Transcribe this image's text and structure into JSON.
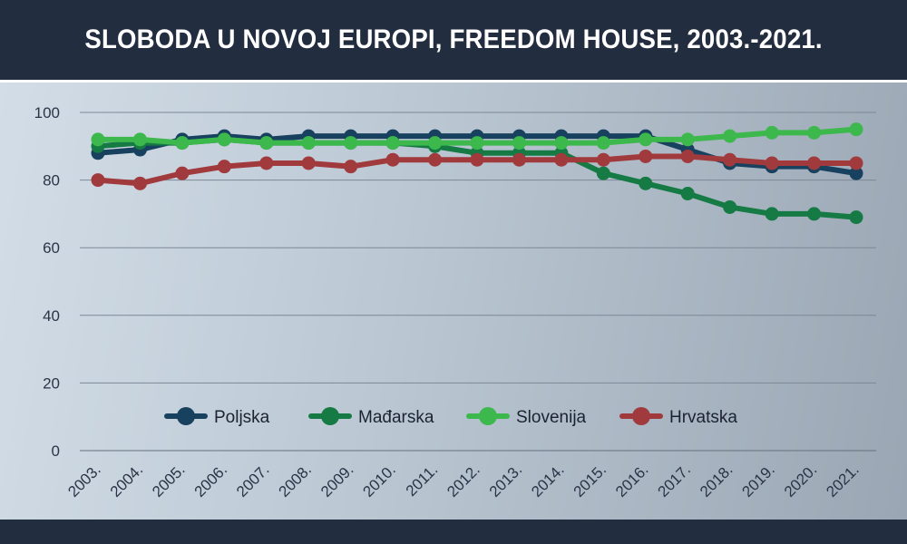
{
  "title": "SLOBODA U NOVOJ EUROPI, FREEDOM HOUSE, 2003.-2021.",
  "chart_data": {
    "type": "line",
    "title": "SLOBODA U NOVOJ EUROPI, FREEDOM HOUSE, 2003.-2021.",
    "xlabel": "",
    "ylabel": "",
    "ylim": [
      0,
      100
    ],
    "yticks": [
      0,
      20,
      40,
      60,
      80,
      100
    ],
    "grid": true,
    "legend_position": "bottom-center",
    "categories": [
      "2003.",
      "2004.",
      "2005.",
      "2006.",
      "2007.",
      "2008.",
      "2009.",
      "2010.",
      "2011.",
      "2012.",
      "2013.",
      "2014.",
      "2015.",
      "2016.",
      "2017.",
      "2018.",
      "2019.",
      "2020.",
      "2021."
    ],
    "series": [
      {
        "name": "Poljska",
        "color": "#17415f",
        "values": [
          88,
          89,
          92,
          93,
          92,
          93,
          93,
          93,
          93,
          93,
          93,
          93,
          93,
          93,
          89,
          85,
          84,
          84,
          82
        ]
      },
      {
        "name": "Mađarska",
        "color": "#157a43",
        "values": [
          90,
          91,
          91,
          92,
          91,
          91,
          91,
          91,
          90,
          88,
          88,
          88,
          82,
          79,
          76,
          72,
          70,
          70,
          69
        ]
      },
      {
        "name": "Slovenija",
        "color": "#3db84c",
        "values": [
          92,
          92,
          91,
          92,
          91,
          91,
          91,
          91,
          91,
          91,
          91,
          91,
          91,
          92,
          92,
          93,
          94,
          94,
          95
        ]
      },
      {
        "name": "Hrvatska",
        "color": "#a13a3c",
        "values": [
          80,
          79,
          82,
          84,
          85,
          85,
          84,
          86,
          86,
          86,
          86,
          86,
          86,
          87,
          87,
          86,
          85,
          85,
          85
        ]
      }
    ]
  }
}
